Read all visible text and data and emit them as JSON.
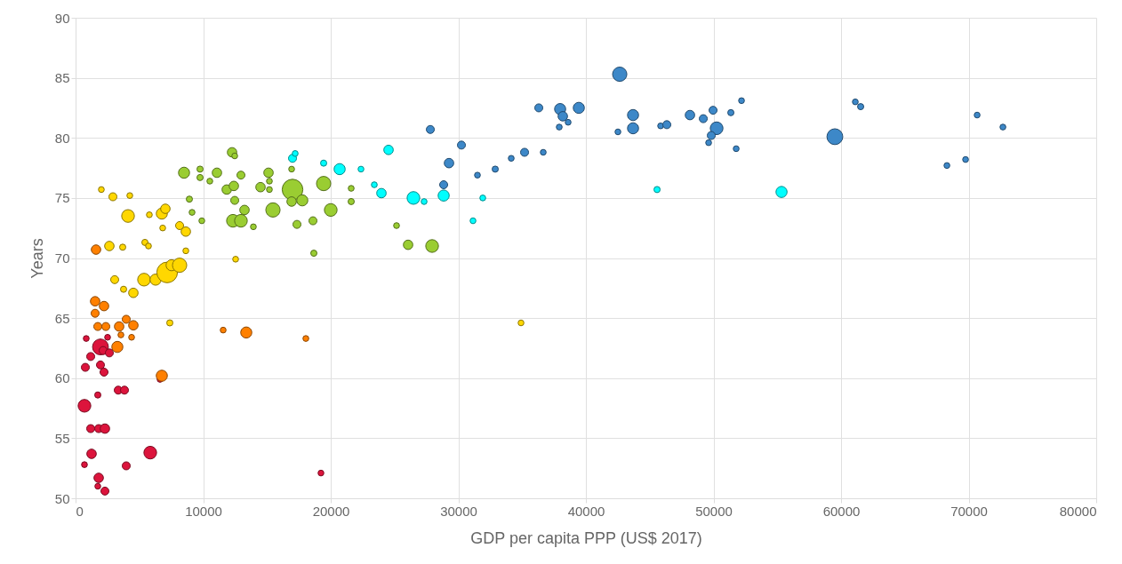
{
  "chart_data": {
    "type": "bubble",
    "xlabel": "GDP per capita PPP (US$ 2017)",
    "ylabel": "Years",
    "xlim": [
      0,
      80000
    ],
    "xticks": [
      0,
      10000,
      20000,
      30000,
      40000,
      50000,
      60000,
      70000,
      80000
    ],
    "ylim": [
      50,
      90
    ],
    "yticks": [
      50,
      55,
      60,
      65,
      70,
      75,
      80,
      85,
      90
    ],
    "grid": true,
    "series": [
      {
        "color": "#dc143c",
        "x": [
          1951,
          2160,
          2648,
          1185,
          767,
          1951,
          2230,
          836,
          2509,
          3345,
          3833,
          1742,
          697,
          1185,
          1812,
          2300,
          1254,
          697,
          3972,
          5854,
          1812,
          1742,
          2300,
          6621,
          19234
        ],
        "values": [
          62.6,
          62.3,
          62.1,
          61.8,
          60.9,
          61.1,
          60.5,
          63.3,
          63.4,
          59.0,
          59.0,
          58.6,
          57.7,
          55.8,
          55.8,
          55.8,
          53.7,
          52.8,
          52.7,
          53.8,
          51.7,
          51.0,
          50.6,
          59.9,
          52.1
        ],
        "sizes": [
          0.59,
          0.15,
          0.15,
          0.15,
          0.15,
          0.15,
          0.15,
          0.08,
          0.08,
          0.15,
          0.15,
          0.09,
          0.38,
          0.15,
          0.15,
          0.21,
          0.21,
          0.08,
          0.15,
          0.38,
          0.21,
          0.08,
          0.15,
          0.08,
          0.08
        ]
      },
      {
        "color": "#ff8000",
        "x": [
          1533,
          2230,
          1533,
          1742,
          2370,
          3415,
          3972,
          4530,
          3554,
          4391,
          3275,
          6760,
          11569,
          13380,
          1603,
          18050
        ],
        "values": [
          66.4,
          66.0,
          65.4,
          64.3,
          64.3,
          64.3,
          64.9,
          64.4,
          63.6,
          63.4,
          62.6,
          60.2,
          64.0,
          63.8,
          70.7,
          63.3
        ],
        "sizes": [
          0.21,
          0.21,
          0.15,
          0.15,
          0.15,
          0.21,
          0.15,
          0.21,
          0.08,
          0.08,
          0.29,
          0.29,
          0.08,
          0.29,
          0.21,
          0.08
        ]
      },
      {
        "color": "#ffd700",
        "x": [
          2021,
          2927,
          4251,
          4112,
          5784,
          6760,
          7039,
          6830,
          8154,
          8642,
          2648,
          3694,
          5436,
          5715,
          8642,
          3066,
          5366,
          6272,
          7178,
          7527,
          8154,
          3763,
          4530,
          7387,
          12544,
          34915
        ],
        "values": [
          75.7,
          75.1,
          75.2,
          73.5,
          73.6,
          73.7,
          74.1,
          72.5,
          72.7,
          72.2,
          71.0,
          70.9,
          71.3,
          71.0,
          70.6,
          68.2,
          68.2,
          68.2,
          68.8,
          69.4,
          69.4,
          67.4,
          67.1,
          64.6,
          69.9,
          64.6
        ],
        "sizes": [
          0.08,
          0.15,
          0.08,
          0.38,
          0.08,
          0.29,
          0.21,
          0.08,
          0.15,
          0.21,
          0.21,
          0.09,
          0.09,
          0.08,
          0.08,
          0.15,
          0.38,
          0.29,
          1,
          0.29,
          0.48,
          0.09,
          0.21,
          0.09,
          0.08,
          0.08
        ]
      },
      {
        "color": "#9acd32",
        "x": [
          8502,
          9757,
          9757,
          10523,
          11081,
          11848,
          8920,
          9130,
          9896,
          12266,
          12475,
          12962,
          12405,
          12475,
          13241,
          12335,
          12962,
          13938,
          14496,
          15123,
          15193,
          15193,
          17005,
          16935,
          17771,
          15471,
          19444,
          20001,
          17353,
          18607,
          18677,
          21604,
          21604,
          16935,
          26064,
          27946,
          25158
        ],
        "values": [
          77.1,
          77.4,
          76.7,
          76.4,
          77.1,
          75.7,
          74.9,
          73.8,
          73.1,
          78.8,
          78.5,
          76.9,
          76.0,
          74.8,
          74.0,
          73.1,
          73.1,
          72.6,
          75.9,
          77.1,
          76.4,
          75.7,
          75.7,
          74.7,
          74.8,
          74.0,
          76.2,
          74.0,
          72.8,
          73.1,
          70.4,
          75.8,
          74.7,
          77.4,
          71.1,
          71.0,
          72.7
        ],
        "sizes": [
          0.29,
          0.09,
          0.09,
          0.08,
          0.21,
          0.21,
          0.09,
          0.08,
          0.08,
          0.21,
          0.08,
          0.15,
          0.21,
          0.15,
          0.21,
          0.38,
          0.38,
          0.08,
          0.21,
          0.21,
          0.08,
          0.08,
          1,
          0.21,
          0.29,
          0.48,
          0.48,
          0.38,
          0.15,
          0.15,
          0.09,
          0.08,
          0.09,
          0.08,
          0.21,
          0.38,
          0.08
        ]
      },
      {
        "color": "#00ffff",
        "x": [
          17005,
          17214,
          19444,
          20698,
          22371,
          24531,
          23416,
          23974,
          26483,
          27319,
          28852,
          31918,
          31152,
          45578,
          55334
        ],
        "values": [
          78.3,
          78.7,
          77.9,
          77.4,
          77.4,
          79.0,
          76.1,
          75.4,
          75.0,
          74.7,
          75.2,
          75.0,
          73.1,
          75.7,
          75.5
        ],
        "sizes": [
          0.15,
          0.08,
          0.09,
          0.29,
          0.08,
          0.21,
          0.08,
          0.21,
          0.38,
          0.08,
          0.29,
          0.08,
          0.08,
          0.09,
          0.29
        ]
      },
      {
        "color": "#3d88c8",
        "x": [
          42651,
          36308,
          37981,
          38190,
          39445,
          38608,
          37911,
          27807,
          30245,
          29270,
          28852,
          31500,
          32894,
          34148,
          35193,
          36657,
          42511,
          43696,
          43696,
          45857,
          46344,
          48157,
          49202,
          49968,
          50247,
          49829,
          49620,
          51362,
          51780,
          52198,
          61118,
          61536,
          59515,
          70666,
          72687,
          68297,
          69760
        ],
        "values": [
          85.3,
          82.5,
          82.4,
          81.8,
          82.5,
          81.3,
          80.9,
          80.7,
          79.4,
          77.9,
          76.1,
          76.9,
          77.4,
          78.3,
          78.8,
          78.8,
          80.5,
          81.9,
          80.8,
          81.0,
          81.1,
          81.9,
          81.6,
          82.3,
          80.8,
          80.2,
          79.6,
          82.1,
          79.1,
          83.1,
          83.0,
          82.6,
          80.1,
          81.9,
          80.9,
          77.7,
          78.2
        ],
        "sizes": [
          0.48,
          0.15,
          0.29,
          0.21,
          0.29,
          0.08,
          0.08,
          0.15,
          0.15,
          0.21,
          0.15,
          0.08,
          0.09,
          0.08,
          0.15,
          0.08,
          0.08,
          0.29,
          0.29,
          0.08,
          0.15,
          0.21,
          0.15,
          0.15,
          0.38,
          0.15,
          0.08,
          0.09,
          0.08,
          0.08,
          0.08,
          0.09,
          0.59,
          0.08,
          0.08,
          0.08,
          0.08
        ]
      }
    ]
  }
}
